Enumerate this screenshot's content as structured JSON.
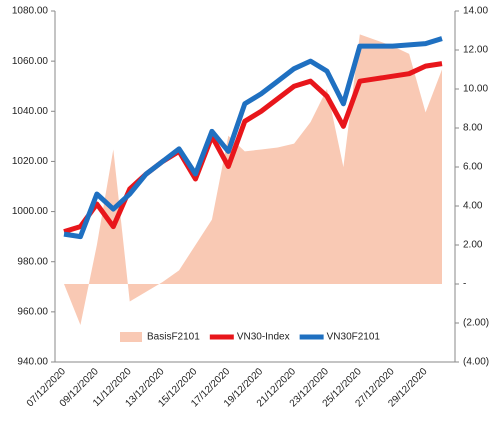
{
  "chart_data": {
    "type": "combo",
    "categories": [
      "07/12/2020",
      null,
      "09/12/2020",
      null,
      "11/12/2020",
      null,
      "13/12/2020",
      null,
      "15/12/2020",
      null,
      "17/12/2020",
      null,
      "19/12/2020",
      null,
      "21/12/2020",
      null,
      "23/12/2020",
      null,
      "25/12/2020",
      null,
      "27/12/2020",
      null,
      "29/12/2020",
      null
    ],
    "series": [
      {
        "name": "BasisF2101",
        "kind": "area",
        "axis": "y2",
        "color": "#f9c9b4",
        "values": [
          0,
          -2.1,
          2.0,
          6.9,
          -0.9,
          -0.4,
          0.1,
          0.7,
          2.0,
          3.3,
          7.6,
          6.8,
          6.9,
          7.0,
          7.2,
          8.3,
          10.0,
          6.0,
          12.8,
          12.5,
          12.2,
          11.8,
          8.8,
          11.0
        ]
      },
      {
        "name": "VN30-Index",
        "kind": "line",
        "axis": "y",
        "color": "#e8161b",
        "values": [
          992,
          994,
          1003,
          994,
          1009,
          1015,
          1020,
          1024,
          1013,
          1030,
          1018,
          1036,
          1040,
          1045,
          1050,
          1052,
          1046,
          1034,
          1052,
          1053,
          1054,
          1055,
          1058,
          1059
        ]
      },
      {
        "name": "VN30F2101",
        "kind": "line",
        "axis": "y",
        "color": "#1f70c1",
        "values": [
          991,
          990,
          1007,
          1001,
          1007,
          1015,
          1020,
          1025,
          1015,
          1032,
          1024,
          1043,
          1047,
          1052,
          1057,
          1060,
          1056,
          1043,
          1066,
          1066,
          1066,
          1066.5,
          1067,
          1069
        ]
      }
    ],
    "ylim": [
      940,
      1080
    ],
    "yticks": [
      {
        "value": 940,
        "label": "940.00"
      },
      {
        "value": 960,
        "label": "960.00"
      },
      {
        "value": 980,
        "label": "980.00"
      },
      {
        "value": 1000,
        "label": "1000.00"
      },
      {
        "value": 1020,
        "label": "1020.00"
      },
      {
        "value": 1040,
        "label": "1040.00"
      },
      {
        "value": 1060,
        "label": "1060.00"
      },
      {
        "value": 1080,
        "label": "1080.00"
      }
    ],
    "y2lim": [
      -4,
      14
    ],
    "y2ticks": [
      {
        "value": -4,
        "label": "(4.00)"
      },
      {
        "value": -2,
        "label": "(2.00)"
      },
      {
        "value": 0,
        "label": "-"
      },
      {
        "value": 2,
        "label": "2.00"
      },
      {
        "value": 4,
        "label": "4.00"
      },
      {
        "value": 6,
        "label": "6.00"
      },
      {
        "value": 8,
        "label": "8.00"
      },
      {
        "value": 10,
        "label": "10.00"
      },
      {
        "value": 12,
        "label": "12.00"
      },
      {
        "value": 14,
        "label": "14.00"
      }
    ],
    "legend": "bottom"
  }
}
